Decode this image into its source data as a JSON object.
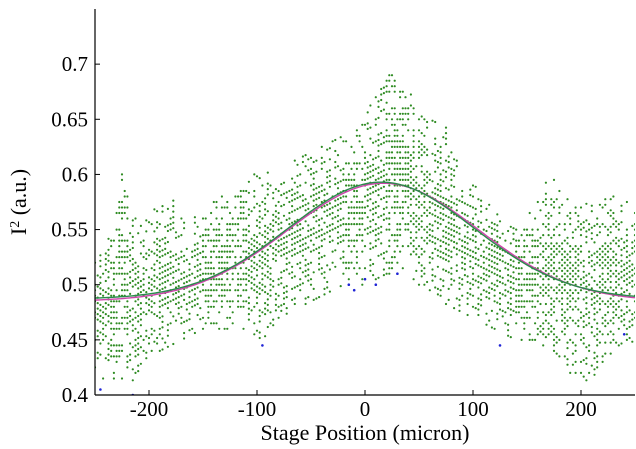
{
  "chart_data": {
    "type": "scatter",
    "title": "",
    "xlabel": "Stage Position (micron)",
    "ylabel": "I",
    "ylabel_superscript": "2",
    "ylabel_unit": " (a.u.)",
    "xlim": [
      -250,
      250
    ],
    "ylim": [
      0.4,
      0.75
    ],
    "xticks": [
      -200,
      -100,
      0,
      100,
      200
    ],
    "yticks": [
      0.4,
      0.45,
      0.5,
      0.55,
      0.6,
      0.65,
      0.7
    ],
    "xtick_labels": [
      "-200",
      "-100",
      "0",
      "100",
      "200"
    ],
    "ytick_labels": [
      "0.4",
      "0.45",
      "0.5",
      "0.55",
      "0.6",
      "0.65",
      "0.7"
    ],
    "grid": false,
    "legend": "none",
    "series": [
      {
        "kind": "scatter",
        "color": "#2e8b22",
        "note_value_quantization": 0.005,
        "x_step": 2.5,
        "upper_envelope": [
          [
            -250,
            0.52
          ],
          [
            -235,
            0.55
          ],
          [
            -225,
            0.6
          ],
          [
            -210,
            0.55
          ],
          [
            -195,
            0.57
          ],
          [
            -180,
            0.58
          ],
          [
            -165,
            0.55
          ],
          [
            -150,
            0.57
          ],
          [
            -130,
            0.58
          ],
          [
            -110,
            0.6
          ],
          [
            -95,
            0.6
          ],
          [
            -80,
            0.6
          ],
          [
            -65,
            0.61
          ],
          [
            -50,
            0.62
          ],
          [
            -30,
            0.64
          ],
          [
            -15,
            0.63
          ],
          [
            0,
            0.65
          ],
          [
            10,
            0.67
          ],
          [
            20,
            0.69
          ],
          [
            30,
            0.69
          ],
          [
            45,
            0.67
          ],
          [
            60,
            0.65
          ],
          [
            75,
            0.64
          ],
          [
            90,
            0.6
          ],
          [
            110,
            0.58
          ],
          [
            130,
            0.55
          ],
          [
            150,
            0.56
          ],
          [
            170,
            0.6
          ],
          [
            190,
            0.58
          ],
          [
            210,
            0.57
          ],
          [
            230,
            0.58
          ],
          [
            250,
            0.57
          ]
        ],
        "lower_envelope": [
          [
            -250,
            0.42
          ],
          [
            -235,
            0.41
          ],
          [
            -220,
            0.41
          ],
          [
            -205,
            0.42
          ],
          [
            -190,
            0.44
          ],
          [
            -170,
            0.45
          ],
          [
            -150,
            0.46
          ],
          [
            -130,
            0.46
          ],
          [
            -110,
            0.46
          ],
          [
            -95,
            0.45
          ],
          [
            -80,
            0.47
          ],
          [
            -60,
            0.48
          ],
          [
            -40,
            0.49
          ],
          [
            -20,
            0.5
          ],
          [
            0,
            0.5
          ],
          [
            20,
            0.51
          ],
          [
            40,
            0.51
          ],
          [
            60,
            0.49
          ],
          [
            80,
            0.48
          ],
          [
            100,
            0.47
          ],
          [
            120,
            0.46
          ],
          [
            140,
            0.45
          ],
          [
            160,
            0.45
          ],
          [
            180,
            0.43
          ],
          [
            200,
            0.41
          ],
          [
            215,
            0.42
          ],
          [
            235,
            0.44
          ],
          [
            250,
            0.45
          ]
        ]
      },
      {
        "kind": "scatter-highlight",
        "color": "#1f24d6",
        "points": [
          [
            -245,
            0.405
          ],
          [
            -215,
            0.4
          ],
          [
            -95,
            0.445
          ],
          [
            -15,
            0.5
          ],
          [
            -10,
            0.495
          ],
          [
            0,
            0.505
          ],
          [
            10,
            0.5
          ],
          [
            30,
            0.51
          ],
          [
            125,
            0.445
          ],
          [
            240,
            0.455
          ]
        ]
      },
      {
        "kind": "fit",
        "color": "#cc44aa",
        "model": "gaussian",
        "baseline": 0.485,
        "amplitude": 0.107,
        "center": 17,
        "sigma": 88
      },
      {
        "kind": "fit",
        "color": "#2a8a4c",
        "model": "gaussian",
        "baseline": 0.487,
        "amplitude": 0.106,
        "center": 15,
        "sigma": 86
      }
    ]
  }
}
